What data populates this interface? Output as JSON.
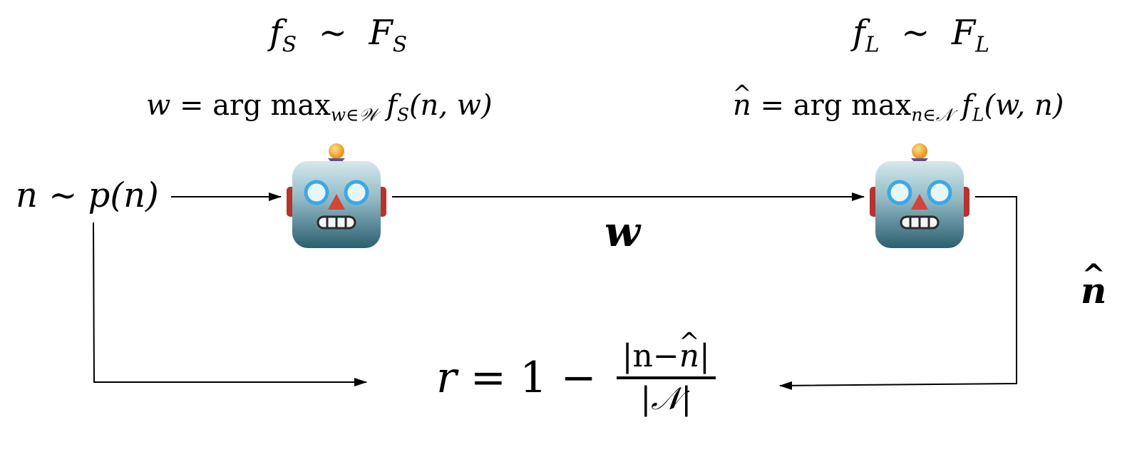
{
  "speaker": {
    "distribution": {
      "f": "f",
      "sub": "S",
      "sim": "∼",
      "F": "F",
      "Fsub": "S"
    },
    "policy": {
      "lhs": "w",
      "eq": "=",
      "op": "arg max",
      "sub_var": "w",
      "sub_in": "∈",
      "sub_set": "𝒲",
      "f": "f",
      "f_sub": "S",
      "args": "(n, w)"
    }
  },
  "listener": {
    "distribution": {
      "f": "f",
      "sub": "L",
      "sim": "∼",
      "F": "F",
      "Fsub": "L"
    },
    "policy": {
      "lhs": "n",
      "eq": "=",
      "op": "arg max",
      "sub_var": "n",
      "sub_in": "∈",
      "sub_set": "𝒩",
      "f": "f",
      "f_sub": "L",
      "args": "(w, n)"
    }
  },
  "source": {
    "var": "n",
    "sim": "∼",
    "dist": "p(n)"
  },
  "message": {
    "label": "w"
  },
  "guess": {
    "label": "n"
  },
  "reward": {
    "lhs": "r",
    "eq": "=",
    "one": "1",
    "minus": "−",
    "numerator": "|n−n|",
    "num_left": "|n−",
    "num_hat": "n",
    "num_right": "|",
    "denominator": "|𝒩|"
  },
  "icons": [
    "robot-icon",
    "robot-icon"
  ],
  "colors": {
    "line": "#000000",
    "robot_face_top": "#c9dfe3",
    "robot_face_bottom": "#2f6474",
    "robot_ear": "#c0322f",
    "robot_antenna": "#f2a531",
    "robot_eye": "#3aa9e6",
    "robot_nose": "#d2453b"
  }
}
